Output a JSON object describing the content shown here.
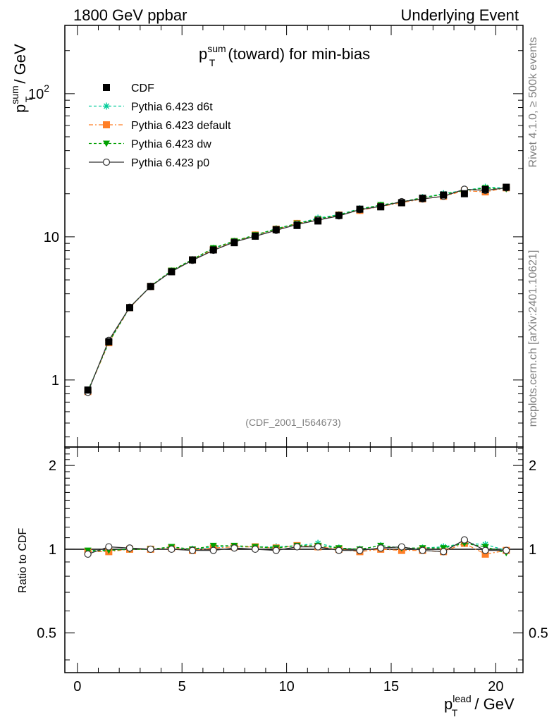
{
  "header": {
    "left": "1800 GeV ppbar",
    "right": "Underlying Event"
  },
  "side_labels": {
    "rivet": "Rivet 4.1.0, ≥ 500k events",
    "mcplots": "mcplots.cern.ch [arXiv:2401.10621]"
  },
  "analysis_id": "(CDF_2001_I564673)",
  "chart_data": [
    {
      "type": "line",
      "title": {
        "base": "p",
        "sup": "sum",
        "sub": "T",
        "rest": " (toward) for min-bias"
      },
      "ylabel": {
        "base": "p",
        "sup": "sum",
        "sub": "T",
        "rest": " / GeV"
      },
      "xlabel": {
        "base": "p",
        "sup": "lead",
        "sub": "T",
        "rest": " / GeV"
      },
      "yscale": "log",
      "xlim": [
        -0.6,
        21.3
      ],
      "ylim": [
        0.34,
        300
      ],
      "yticks": [
        {
          "value": 1,
          "label": "1"
        },
        {
          "value": 10,
          "label": "10"
        },
        {
          "value": 100,
          "label": "10",
          "exp": "2"
        }
      ],
      "xticks": [
        {
          "value": 0,
          "label": "0"
        },
        {
          "value": 5,
          "label": "5"
        },
        {
          "value": 10,
          "label": "10"
        },
        {
          "value": 15,
          "label": "15"
        },
        {
          "value": 20,
          "label": "20"
        }
      ],
      "x": [
        0.5,
        1.5,
        2.5,
        3.5,
        4.5,
        5.5,
        6.5,
        7.5,
        8.5,
        9.5,
        10.5,
        11.5,
        12.5,
        13.5,
        14.5,
        15.5,
        16.5,
        17.5,
        18.5,
        19.5,
        20.5
      ],
      "legend_position": "top-left",
      "series": [
        {
          "name": "CDF",
          "color": "#000000",
          "marker": "square",
          "dash": "none",
          "line": false,
          "values": [
            0.85,
            1.85,
            3.2,
            4.5,
            5.7,
            6.9,
            8.1,
            9.1,
            10.1,
            11.2,
            12.0,
            12.9,
            14.1,
            15.6,
            16.2,
            17.3,
            18.6,
            19.6,
            20.0,
            21.4,
            22.2
          ]
        },
        {
          "name": "Pythia 6.423 d6t",
          "color": "#00cc99",
          "marker": "asterisk",
          "dash": "4,3",
          "line": true,
          "values": [
            0.83,
            1.83,
            3.2,
            4.52,
            5.78,
            6.93,
            8.3,
            9.3,
            10.3,
            11.4,
            12.4,
            13.5,
            14.3,
            15.7,
            16.6,
            17.5,
            18.8,
            20.0,
            21.1,
            22.2,
            22.0
          ]
        },
        {
          "name": "Pythia 6.423 default",
          "color": "#ff7f27",
          "marker": "square",
          "dash": "6,3,2,3",
          "line": true,
          "values": [
            0.83,
            1.82,
            3.2,
            4.5,
            5.76,
            6.9,
            8.15,
            9.25,
            10.3,
            11.3,
            12.4,
            13.1,
            14.2,
            15.3,
            16.3,
            17.3,
            18.4,
            19.2,
            21.0,
            20.6,
            22.0
          ]
        },
        {
          "name": "Pythia 6.423 dw",
          "color": "#00a000",
          "marker": "triangle-down",
          "dash": "4,3",
          "line": true,
          "values": [
            0.84,
            1.83,
            3.22,
            4.52,
            5.82,
            6.95,
            8.35,
            9.35,
            10.3,
            11.35,
            12.4,
            13.3,
            14.2,
            15.6,
            16.7,
            17.5,
            18.8,
            19.8,
            21.1,
            21.9,
            21.6
          ]
        },
        {
          "name": "Pythia 6.423 p0",
          "color": "#333333",
          "marker": "circle-open",
          "dash": "none",
          "line": true,
          "values": [
            0.82,
            1.89,
            3.22,
            4.5,
            5.72,
            6.85,
            8.05,
            9.2,
            10.1,
            11.1,
            12.2,
            13.1,
            14.0,
            15.5,
            16.3,
            17.6,
            18.4,
            19.2,
            21.5,
            21.1,
            22.0
          ]
        }
      ]
    },
    {
      "type": "line",
      "ylabel": "Ratio to CDF",
      "ylim": [
        0.36,
        2.33
      ],
      "yscale": "log",
      "reference_line": 1,
      "yticks_left": [
        {
          "value": 0.5,
          "label": "0.5"
        },
        {
          "value": 1,
          "label": "1"
        },
        {
          "value": 2,
          "label": "2"
        }
      ],
      "yticks_right": [
        {
          "value": 0.5,
          "label": "0.5"
        },
        {
          "value": 1,
          "label": "1"
        },
        {
          "value": 2,
          "label": "2"
        }
      ],
      "x": [
        0.5,
        1.5,
        2.5,
        3.5,
        4.5,
        5.5,
        6.5,
        7.5,
        8.5,
        9.5,
        10.5,
        11.5,
        12.5,
        13.5,
        14.5,
        15.5,
        16.5,
        17.5,
        18.5,
        19.5,
        20.5
      ],
      "series": [
        {
          "name": "Pythia 6.423 d6t",
          "color": "#00cc99",
          "marker": "asterisk",
          "dash": "4,3",
          "values": [
            0.98,
            0.99,
            1.0,
            1.0,
            1.01,
            1.0,
            1.02,
            1.02,
            1.02,
            1.02,
            1.03,
            1.05,
            1.01,
            1.0,
            1.03,
            1.01,
            1.01,
            1.02,
            1.05,
            1.04,
            0.99
          ]
        },
        {
          "name": "Pythia 6.423 default",
          "color": "#ff7f27",
          "marker": "square",
          "dash": "6,3,2,3",
          "values": [
            0.98,
            0.98,
            1.0,
            1.0,
            1.01,
            0.99,
            1.01,
            1.02,
            1.02,
            1.01,
            1.03,
            1.02,
            1.0,
            0.98,
            1.0,
            0.99,
            0.99,
            0.98,
            1.05,
            0.96,
            0.99
          ]
        },
        {
          "name": "Pythia 6.423 dw",
          "color": "#00a000",
          "marker": "triangle-down",
          "dash": "4,3",
          "values": [
            0.99,
            0.99,
            1.0,
            1.0,
            1.02,
            1.0,
            1.03,
            1.03,
            1.02,
            1.01,
            1.03,
            1.03,
            1.01,
            1.0,
            1.03,
            1.01,
            1.01,
            1.01,
            1.05,
            1.02,
            0.97
          ]
        },
        {
          "name": "Pythia 6.423 p0",
          "color": "#333333",
          "marker": "circle-open",
          "dash": "none",
          "values": [
            0.96,
            1.02,
            1.01,
            1.0,
            1.0,
            0.99,
            0.99,
            1.01,
            1.0,
            0.99,
            1.02,
            1.02,
            0.99,
            0.99,
            1.01,
            1.02,
            0.99,
            0.98,
            1.08,
            0.99,
            0.99
          ]
        }
      ]
    }
  ]
}
